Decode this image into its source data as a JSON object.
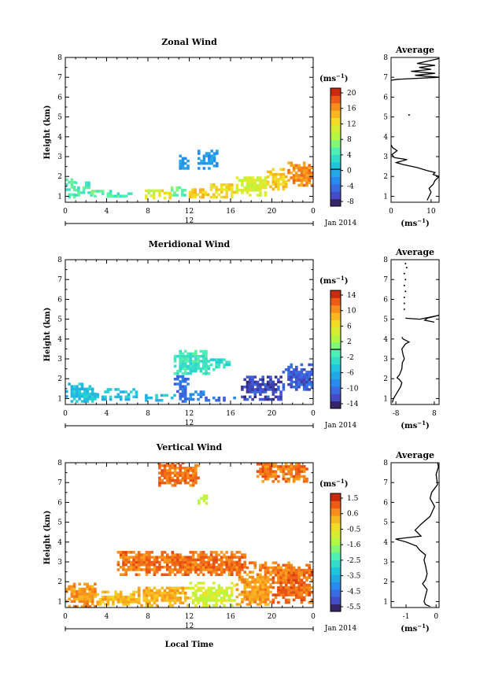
{
  "chart_data": [
    {
      "type": "heatmap",
      "title": "Zonal Wind",
      "ylabel": "Height (km)",
      "yticks": [
        "1",
        "2",
        "3",
        "4",
        "5",
        "6",
        "7",
        "8"
      ],
      "xticks": [
        "0",
        "4",
        "8",
        "12",
        "16",
        "20",
        "0"
      ],
      "xlim": [
        0,
        24
      ],
      "ylim": [
        0.7,
        8
      ],
      "day_label": "12",
      "date_label": "Jan 2014",
      "colorbar": {
        "unit": "(ms",
        "unit_exp": "−1",
        "unit_close": ")",
        "tick_labels": [
          "20",
          "16",
          "12",
          "8",
          "4",
          "0",
          "-4",
          "-8"
        ],
        "range": [
          -10,
          22
        ],
        "zero_line_at": 0
      },
      "profile": {
        "title": "Average",
        "xticks": [
          "0",
          "10"
        ],
        "xlim": [
          0,
          12
        ],
        "xlabel": "(ms",
        "xlabel_exp": "−1",
        "xlabel_close": ")",
        "points": [
          [
            9,
            0.8
          ],
          [
            9.5,
            1.0
          ],
          [
            10,
            1.2
          ],
          [
            9.5,
            1.4
          ],
          [
            10.5,
            1.6
          ],
          [
            11,
            1.8
          ],
          [
            12,
            2.0
          ],
          [
            10.5,
            2.1
          ],
          [
            11,
            2.2
          ],
          [
            9,
            2.3
          ],
          [
            6.5,
            2.45
          ],
          [
            3,
            2.6
          ],
          [
            1.3,
            2.7
          ],
          [
            4,
            2.85
          ],
          [
            0.8,
            2.95
          ],
          [
            0.2,
            3.1
          ],
          [
            1.5,
            3.3
          ],
          [
            0.4,
            3.45
          ],
          [
            0,
            3.6
          ]
        ],
        "points_upper": [
          [
            0,
            6.85
          ],
          [
            1.8,
            6.9
          ],
          [
            12,
            7.0
          ],
          [
            6,
            7.1
          ],
          [
            11,
            7.2
          ],
          [
            5,
            7.3
          ],
          [
            10,
            7.4
          ],
          [
            7,
            7.5
          ],
          [
            11,
            7.6
          ],
          [
            6.5,
            7.7
          ],
          [
            10,
            7.85
          ],
          [
            12,
            7.95
          ]
        ],
        "points_dot": [
          [
            4.5,
            5.1
          ]
        ]
      },
      "patches": [
        {
          "x0": 0.0,
          "x1": 0.9,
          "y0": 0.9,
          "y1": 1.8,
          "value": 5
        },
        {
          "x0": 0.9,
          "x1": 2.5,
          "y0": 1.0,
          "y1": 1.7,
          "value": 5
        },
        {
          "x0": 2.5,
          "x1": 4.5,
          "y0": 0.95,
          "y1": 1.3,
          "value": 5
        },
        {
          "x0": 4.5,
          "x1": 6.5,
          "y0": 0.95,
          "y1": 1.15,
          "value": 5
        },
        {
          "x0": 7.7,
          "x1": 9.0,
          "y0": 0.85,
          "y1": 1.25,
          "value": 11
        },
        {
          "x0": 9.0,
          "x1": 10.2,
          "y0": 0.85,
          "y1": 1.35,
          "value": 13
        },
        {
          "x0": 10.2,
          "x1": 11.7,
          "y0": 1.0,
          "y1": 1.5,
          "value": 6
        },
        {
          "x0": 11.7,
          "x1": 14.0,
          "y0": 0.9,
          "y1": 1.3,
          "value": 14
        },
        {
          "x0": 14.0,
          "x1": 16.5,
          "y0": 0.9,
          "y1": 1.6,
          "value": 13
        },
        {
          "x0": 16.5,
          "x1": 19.5,
          "y0": 1.0,
          "y1": 2.0,
          "value": 11
        },
        {
          "x0": 19.5,
          "x1": 21.5,
          "y0": 1.3,
          "y1": 2.4,
          "value": 14
        },
        {
          "x0": 21.5,
          "x1": 24.0,
          "y0": 1.5,
          "y1": 2.7,
          "value": 17
        },
        {
          "x0": 11.0,
          "x1": 11.8,
          "y0": 2.35,
          "y1": 3.05,
          "value": -2
        },
        {
          "x0": 12.8,
          "x1": 14.6,
          "y0": 2.35,
          "y1": 3.3,
          "value": -2
        }
      ]
    },
    {
      "type": "heatmap",
      "title": "Meridional Wind",
      "ylabel": "Height (km)",
      "yticks": [
        "1",
        "2",
        "3",
        "4",
        "5",
        "6",
        "7",
        "8"
      ],
      "xticks": [
        "0",
        "4",
        "8",
        "12",
        "16",
        "20",
        "0"
      ],
      "xlim": [
        0,
        24
      ],
      "ylim": [
        0.7,
        8
      ],
      "day_label": "12",
      "date_label": "Jan 2014",
      "colorbar": {
        "unit": "(ms",
        "unit_exp": "−1",
        "unit_close": ")",
        "tick_labels": [
          "14",
          "10",
          "6",
          "2",
          "-2",
          "-6",
          "-10",
          "-14"
        ],
        "range": [
          -16,
          16
        ],
        "zero_line_at": 0
      },
      "profile": {
        "title": "Average",
        "xticks": [
          "-8",
          "8"
        ],
        "xlim": [
          -10,
          10
        ],
        "xlabel": "(ms",
        "xlabel_exp": "−1",
        "xlabel_close": ")",
        "points": [
          [
            -9.5,
            0.8
          ],
          [
            -9,
            1.0
          ],
          [
            -8,
            1.2
          ],
          [
            -7,
            1.4
          ],
          [
            -6,
            1.6
          ],
          [
            -5.5,
            1.8
          ],
          [
            -6.5,
            1.95
          ],
          [
            -7.5,
            2.05
          ],
          [
            -6.5,
            2.2
          ],
          [
            -5.5,
            2.5
          ],
          [
            -5.3,
            2.8
          ],
          [
            -4.5,
            3.0
          ],
          [
            -5,
            3.2
          ],
          [
            -5.5,
            3.5
          ],
          [
            -4,
            3.75
          ],
          [
            -2.5,
            3.85
          ],
          [
            -5,
            4.0
          ],
          [
            -5.5,
            4.1
          ]
        ],
        "points_upper": [
          [
            -4,
            5.05
          ],
          [
            2,
            5.0
          ],
          [
            10,
            5.2
          ],
          [
            5,
            5.05
          ],
          [
            4,
            4.95
          ],
          [
            8,
            4.85
          ]
        ],
        "points_dots": [
          [
            -4.5,
            5.5
          ],
          [
            -4.5,
            5.8
          ],
          [
            -4.5,
            6.1
          ],
          [
            -4,
            6.4
          ],
          [
            -4.5,
            6.7
          ],
          [
            -4,
            7.0
          ],
          [
            -4.5,
            7.3
          ],
          [
            -3.5,
            7.6
          ],
          [
            -4,
            7.8
          ]
        ]
      },
      "patches": [
        {
          "x0": 0.0,
          "x1": 3.0,
          "y0": 0.8,
          "y1": 1.7,
          "value": -5
        },
        {
          "x0": 3.0,
          "x1": 7.0,
          "y0": 0.9,
          "y1": 1.5,
          "value": -5
        },
        {
          "x0": 7.7,
          "x1": 10.5,
          "y0": 0.85,
          "y1": 1.2,
          "value": -5
        },
        {
          "x0": 10.5,
          "x1": 12.0,
          "y0": 0.8,
          "y1": 2.1,
          "value": -11
        },
        {
          "x0": 12.0,
          "x1": 13.5,
          "y0": 0.9,
          "y1": 1.4,
          "value": -9
        },
        {
          "x0": 13.5,
          "x1": 16.5,
          "y0": 0.85,
          "y1": 1.1,
          "value": -11
        },
        {
          "x0": 17.0,
          "x1": 21.0,
          "y0": 0.9,
          "y1": 2.1,
          "value": -13
        },
        {
          "x0": 21.0,
          "x1": 24.0,
          "y0": 1.4,
          "y1": 2.7,
          "value": -12
        },
        {
          "x0": 10.5,
          "x1": 14.0,
          "y0": 2.2,
          "y1": 3.4,
          "value": -2
        },
        {
          "x0": 14.0,
          "x1": 16.0,
          "y0": 2.4,
          "y1": 2.95,
          "value": -3
        }
      ]
    },
    {
      "type": "heatmap",
      "title": "Vertical Wind",
      "ylabel": "Height (km)",
      "xlabel": "Local Time",
      "yticks": [
        "1",
        "2",
        "3",
        "4",
        "5",
        "6",
        "7",
        "8"
      ],
      "xticks": [
        "0",
        "4",
        "8",
        "12",
        "16",
        "20",
        "0"
      ],
      "xlim": [
        0,
        24
      ],
      "ylim": [
        0.7,
        8
      ],
      "day_label": "12",
      "date_label": "Jan 2014",
      "colorbar": {
        "unit": "(ms",
        "unit_exp": "−1",
        "unit_close": ")",
        "tick_labels": [
          "1.5",
          "0.6",
          "-0.5",
          "-1.6",
          "-2.5",
          "-3.5",
          "-4.5",
          "-5.5"
        ],
        "range": [
          -6,
          2
        ],
        "zero_line_at": null
      },
      "profile": {
        "title": "Average",
        "xticks": [
          "-1",
          "0"
        ],
        "xlim": [
          -1.5,
          0.1
        ],
        "xlabel": "(ms",
        "xlabel_exp": "−1",
        "xlabel_close": ")",
        "points": [
          [
            -0.2,
            0.75
          ],
          [
            -0.35,
            0.85
          ],
          [
            -0.4,
            1.0
          ],
          [
            -0.35,
            1.3
          ],
          [
            -0.3,
            1.6
          ],
          [
            -0.45,
            1.9
          ],
          [
            -0.35,
            2.1
          ],
          [
            -0.3,
            2.4
          ],
          [
            -0.35,
            2.8
          ],
          [
            -0.4,
            3.1
          ],
          [
            -0.35,
            3.35
          ],
          [
            -0.55,
            3.6
          ],
          [
            -0.65,
            3.8
          ],
          [
            -1.0,
            4.0
          ],
          [
            -1.35,
            4.15
          ],
          [
            -0.5,
            4.3
          ],
          [
            -0.7,
            4.6
          ],
          [
            -0.5,
            4.9
          ],
          [
            -0.2,
            5.3
          ],
          [
            -0.05,
            5.8
          ],
          [
            -0.2,
            6.2
          ],
          [
            -0.15,
            6.5
          ],
          [
            0.05,
            6.9
          ],
          [
            0.0,
            7.4
          ],
          [
            0.08,
            7.8
          ],
          [
            0.05,
            8.0
          ]
        ]
      },
      "patches": [
        {
          "x0": 0.0,
          "x1": 3.0,
          "y0": 0.7,
          "y1": 1.9,
          "value": 0.6
        },
        {
          "x0": 3.0,
          "x1": 7.0,
          "y0": 0.8,
          "y1": 1.5,
          "value": 0.2
        },
        {
          "x0": 7.0,
          "x1": 12.0,
          "y0": 0.75,
          "y1": 1.7,
          "value": 0.3
        },
        {
          "x0": 12.0,
          "x1": 16.5,
          "y0": 0.75,
          "y1": 1.9,
          "value": -0.8
        },
        {
          "x0": 16.5,
          "x1": 20.0,
          "y0": 0.8,
          "y1": 2.5,
          "value": 0.6
        },
        {
          "x0": 20.0,
          "x1": 24.0,
          "y0": 0.9,
          "y1": 2.8,
          "value": 1.1
        },
        {
          "x0": 5.0,
          "x1": 17.5,
          "y0": 2.3,
          "y1": 3.5,
          "value": 1.0
        },
        {
          "x0": 17.5,
          "x1": 22.0,
          "y0": 2.4,
          "y1": 3.0,
          "value": 0.9
        },
        {
          "x0": 9.0,
          "x1": 13.0,
          "y0": 6.8,
          "y1": 8.0,
          "value": 1.0
        },
        {
          "x0": 18.5,
          "x1": 23.5,
          "y0": 7.0,
          "y1": 8.0,
          "value": 1.0
        },
        {
          "x0": 12.8,
          "x1": 13.8,
          "y0": 5.9,
          "y1": 6.4,
          "value": -1.2
        }
      ]
    }
  ]
}
